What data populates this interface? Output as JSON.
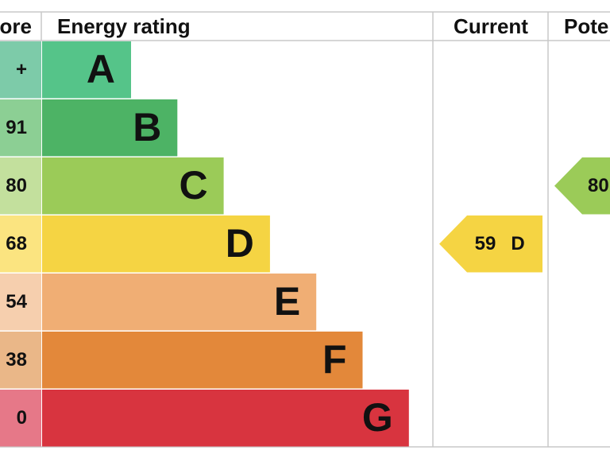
{
  "header": {
    "score": "ore",
    "rating": "Energy rating",
    "current": "Current",
    "potential": "Pote"
  },
  "bands": [
    {
      "score": "+",
      "letter": "A",
      "color": "#55c489",
      "light": "#7dcba9"
    },
    {
      "score": "91",
      "letter": "B",
      "color": "#4db365",
      "light": "#8ccf94"
    },
    {
      "score": "80",
      "letter": "C",
      "color": "#9bcb58",
      "light": "#c3e09d"
    },
    {
      "score": "68",
      "letter": "D",
      "color": "#f5d443",
      "light": "#fbe480"
    },
    {
      "score": "54",
      "letter": "E",
      "color": "#f0ae74",
      "light": "#f6cfae"
    },
    {
      "score": "38",
      "letter": "F",
      "color": "#e3883a",
      "light": "#eab788"
    },
    {
      "score": "0",
      "letter": "G",
      "color": "#d8343f",
      "light": "#e67888"
    }
  ],
  "current": {
    "score": "59",
    "band": "D",
    "color": "#f5d443"
  },
  "potential": {
    "score": "80",
    "color": "#9bcb58"
  }
}
